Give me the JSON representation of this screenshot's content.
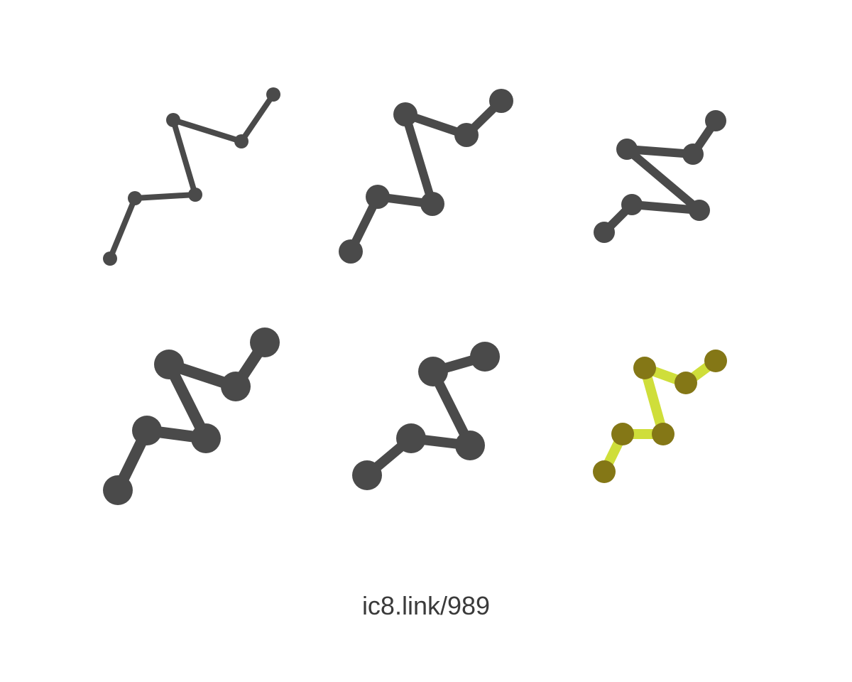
{
  "colors": {
    "background": "#ffffff",
    "dark_variant": "#4a4a4a",
    "color_variant_line": "#cfde3a",
    "color_variant_node": "#847716",
    "caption_text": "#3a3a3a"
  },
  "icons": [
    {
      "name": "polyline-chart-icon-thin",
      "style": "thin"
    },
    {
      "name": "polyline-chart-icon-medium",
      "style": "medium"
    },
    {
      "name": "polyline-chart-icon-zigzag",
      "style": "zigzag"
    },
    {
      "name": "polyline-chart-icon-bold",
      "style": "bold"
    },
    {
      "name": "polyline-chart-icon-simple",
      "style": "simple"
    },
    {
      "name": "polyline-chart-icon-color",
      "style": "color"
    }
  ],
  "caption": {
    "text": "ic8.link/989"
  }
}
